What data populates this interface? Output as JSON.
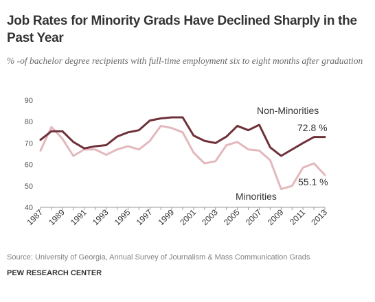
{
  "title": "Job Rates for Minority Grads Have Declined Sharply in the Past Year",
  "subtitle": "% -of bachelor degree recipients with full-time employment six to eight months after graduation",
  "source": "Source: University of Georgia, Annual Survey of Journalism & Mass Communication Grads",
  "org": "PEW RESEARCH CENTER",
  "colors": {
    "non_minorities": "#6e3039",
    "minorities": "#e3b8bd",
    "axis": "#999999"
  },
  "chart_data": {
    "type": "line",
    "x": [
      1987,
      1988,
      1989,
      1990,
      1991,
      1992,
      1993,
      1994,
      1995,
      1996,
      1997,
      1998,
      1999,
      2000,
      2001,
      2002,
      2003,
      2004,
      2005,
      2006,
      2007,
      2008,
      2009,
      2010,
      2011,
      2012,
      2013
    ],
    "x_tick_labels": [
      "1987",
      "1989",
      "1991",
      "1993",
      "1995",
      "1997",
      "1999",
      "2001",
      "2003",
      "2005",
      "2007",
      "2009",
      "2011",
      "2013"
    ],
    "ylim": [
      40,
      90
    ],
    "y_ticks": [
      "40",
      "50",
      "60",
      "70",
      "80",
      "90"
    ],
    "series": [
      {
        "name": "Non-Minorities",
        "values": [
          71.5,
          75.5,
          75.5,
          70.5,
          67.5,
          68.5,
          69,
          73,
          75,
          76,
          80.5,
          81.5,
          82,
          82,
          73.5,
          71,
          70,
          73,
          78,
          76,
          78.5,
          68,
          64,
          67,
          70,
          72.8,
          72.8
        ]
      },
      {
        "name": "Minorities",
        "values": [
          66.5,
          77.5,
          72,
          64,
          67,
          67,
          64.5,
          67,
          68.5,
          67,
          71,
          78,
          77,
          75,
          65.5,
          60.5,
          61.5,
          69,
          70.5,
          67,
          66.5,
          62,
          48.5,
          50,
          58.5,
          60.5,
          55.1
        ]
      }
    ],
    "annotations": {
      "non_minorities_label": "Non-Minorities",
      "minorities_label": "Minorities",
      "non_minorities_end": "72.8 %",
      "minorities_end": "55.1 %"
    }
  }
}
